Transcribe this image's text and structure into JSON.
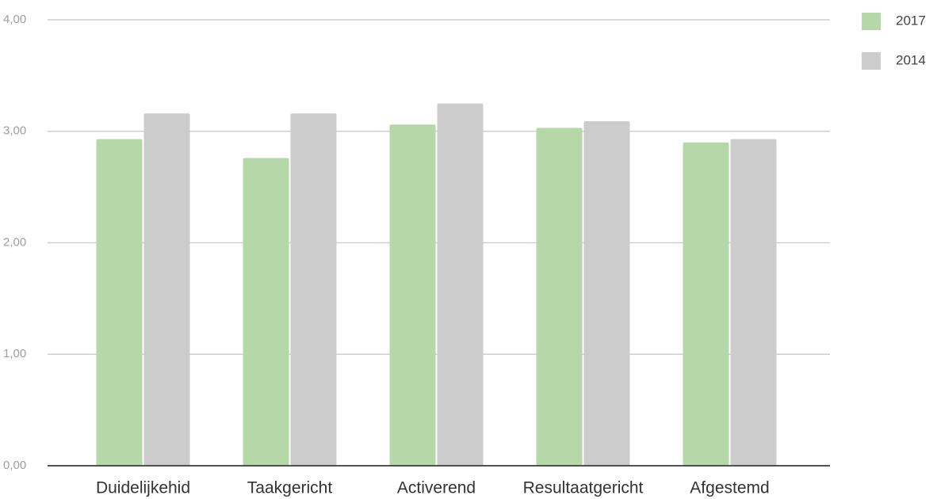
{
  "chart_data": {
    "type": "bar",
    "categories": [
      "Duidelijkehid",
      "Taakgericht",
      "Activerend",
      "Resultaatgericht",
      "Afgestemd"
    ],
    "series": [
      {
        "name": "2017",
        "color": "#b6d7a8",
        "values": [
          2.93,
          2.76,
          3.06,
          3.03,
          2.9
        ]
      },
      {
        "name": "2014",
        "color": "#cccccc",
        "values": [
          3.16,
          3.16,
          3.25,
          3.09,
          2.93
        ]
      }
    ],
    "ylim": [
      0,
      4
    ],
    "yticks": [
      {
        "value": 0,
        "label": "0,00"
      },
      {
        "value": 1,
        "label": "1,00"
      },
      {
        "value": 2,
        "label": "2,00"
      },
      {
        "value": 3,
        "label": "3,00"
      },
      {
        "value": 4,
        "label": "4,00"
      }
    ],
    "grid": true,
    "legend": "top-right"
  }
}
